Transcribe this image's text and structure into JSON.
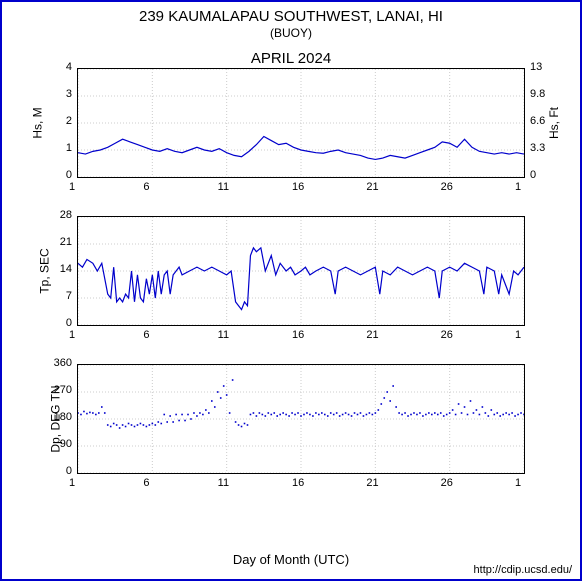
{
  "header": {
    "title": "239 KAUMALAPAU SOUTHWEST, LANAI, HI",
    "subtitle": "(BUOY)",
    "month": "APRIL 2024"
  },
  "xaxis": {
    "label": "Day of Month (UTC)",
    "min": 1,
    "max": 31,
    "ticks": [
      1,
      6,
      11,
      16,
      21,
      26,
      1
    ],
    "tick_positions": [
      1,
      6,
      11,
      16,
      21,
      26,
      31
    ]
  },
  "charts": [
    {
      "id": "hs",
      "type": "line",
      "ylabel": "Hs, M",
      "ylabel_right": "Hs, Ft",
      "ylim": [
        0,
        4
      ],
      "yticks": [
        0,
        1,
        2,
        3,
        4
      ],
      "yticks_right": [
        0,
        3.3,
        6.6,
        9.8,
        13
      ],
      "line_color": "#0000cc",
      "line_width": 1.2,
      "grid_color": "#cccccc",
      "data": [
        [
          1,
          0.9
        ],
        [
          1.5,
          0.85
        ],
        [
          2,
          0.95
        ],
        [
          2.5,
          1.0
        ],
        [
          3,
          1.1
        ],
        [
          3.5,
          1.25
        ],
        [
          4,
          1.4
        ],
        [
          4.5,
          1.3
        ],
        [
          5,
          1.2
        ],
        [
          5.5,
          1.1
        ],
        [
          6,
          1.0
        ],
        [
          6.5,
          0.95
        ],
        [
          7,
          1.05
        ],
        [
          7.5,
          0.95
        ],
        [
          8,
          0.9
        ],
        [
          8.5,
          1.0
        ],
        [
          9,
          1.1
        ],
        [
          9.5,
          1.0
        ],
        [
          10,
          0.95
        ],
        [
          10.5,
          1.05
        ],
        [
          11,
          0.9
        ],
        [
          11.5,
          0.8
        ],
        [
          12,
          0.75
        ],
        [
          12.5,
          0.95
        ],
        [
          13,
          1.2
        ],
        [
          13.5,
          1.5
        ],
        [
          14,
          1.35
        ],
        [
          14.5,
          1.2
        ],
        [
          15,
          1.25
        ],
        [
          15.5,
          1.1
        ],
        [
          16,
          1.0
        ],
        [
          16.5,
          0.95
        ],
        [
          17,
          0.9
        ],
        [
          17.5,
          0.88
        ],
        [
          18,
          0.95
        ],
        [
          18.5,
          1.0
        ],
        [
          19,
          0.9
        ],
        [
          19.5,
          0.85
        ],
        [
          20,
          0.8
        ],
        [
          20.5,
          0.7
        ],
        [
          21,
          0.65
        ],
        [
          21.5,
          0.7
        ],
        [
          22,
          0.8
        ],
        [
          22.5,
          0.75
        ],
        [
          23,
          0.7
        ],
        [
          23.5,
          0.8
        ],
        [
          24,
          0.9
        ],
        [
          24.5,
          1.0
        ],
        [
          25,
          1.1
        ],
        [
          25.5,
          1.3
        ],
        [
          26,
          1.25
        ],
        [
          26.5,
          1.1
        ],
        [
          27,
          1.4
        ],
        [
          27.5,
          1.1
        ],
        [
          28,
          0.95
        ],
        [
          28.5,
          0.9
        ],
        [
          29,
          0.85
        ],
        [
          29.5,
          0.9
        ],
        [
          30,
          0.85
        ],
        [
          30.5,
          0.9
        ],
        [
          31,
          0.85
        ]
      ]
    },
    {
      "id": "tp",
      "type": "line",
      "ylabel": "Tp, SEC",
      "ylim": [
        0,
        28
      ],
      "yticks": [
        0,
        7,
        14,
        21,
        28
      ],
      "line_color": "#0000cc",
      "line_width": 1.2,
      "grid_color": "#cccccc",
      "data": [
        [
          1,
          16
        ],
        [
          1.3,
          15
        ],
        [
          1.6,
          17
        ],
        [
          2,
          16
        ],
        [
          2.3,
          14
        ],
        [
          2.6,
          16
        ],
        [
          3,
          8
        ],
        [
          3.2,
          7
        ],
        [
          3.4,
          15
        ],
        [
          3.6,
          6
        ],
        [
          3.8,
          7
        ],
        [
          4,
          6
        ],
        [
          4.2,
          8
        ],
        [
          4.4,
          7
        ],
        [
          4.6,
          14
        ],
        [
          4.8,
          6
        ],
        [
          5,
          13
        ],
        [
          5.2,
          7
        ],
        [
          5.4,
          6
        ],
        [
          5.6,
          12
        ],
        [
          5.8,
          8
        ],
        [
          6,
          13
        ],
        [
          6.2,
          7
        ],
        [
          6.4,
          14
        ],
        [
          6.6,
          8
        ],
        [
          6.8,
          13
        ],
        [
          7,
          14
        ],
        [
          7.2,
          8
        ],
        [
          7.4,
          13
        ],
        [
          7.6,
          14
        ],
        [
          7.8,
          15
        ],
        [
          8,
          13
        ],
        [
          8.5,
          14
        ],
        [
          9,
          15
        ],
        [
          9.5,
          14
        ],
        [
          10,
          15
        ],
        [
          10.5,
          14
        ],
        [
          11,
          13
        ],
        [
          11.3,
          14
        ],
        [
          11.6,
          6
        ],
        [
          11.8,
          5
        ],
        [
          12,
          4
        ],
        [
          12.2,
          6
        ],
        [
          12.4,
          5
        ],
        [
          12.6,
          18
        ],
        [
          12.8,
          20
        ],
        [
          13,
          19
        ],
        [
          13.3,
          20
        ],
        [
          13.6,
          14
        ],
        [
          14,
          18
        ],
        [
          14.3,
          13
        ],
        [
          14.6,
          16
        ],
        [
          15,
          14
        ],
        [
          15.3,
          15
        ],
        [
          15.6,
          13
        ],
        [
          16,
          14
        ],
        [
          16.3,
          15
        ],
        [
          16.6,
          13
        ],
        [
          17,
          14
        ],
        [
          17.5,
          15
        ],
        [
          18,
          14
        ],
        [
          18.3,
          8
        ],
        [
          18.5,
          14
        ],
        [
          19,
          15
        ],
        [
          19.5,
          14
        ],
        [
          20,
          13
        ],
        [
          20.5,
          14
        ],
        [
          21,
          15
        ],
        [
          21.3,
          8
        ],
        [
          21.5,
          14
        ],
        [
          22,
          13
        ],
        [
          22.5,
          15
        ],
        [
          23,
          14
        ],
        [
          23.5,
          13
        ],
        [
          24,
          14
        ],
        [
          24.5,
          15
        ],
        [
          25,
          14
        ],
        [
          25.3,
          7
        ],
        [
          25.5,
          14
        ],
        [
          26,
          15
        ],
        [
          26.5,
          14
        ],
        [
          27,
          16
        ],
        [
          27.5,
          15
        ],
        [
          28,
          14
        ],
        [
          28.3,
          8
        ],
        [
          28.5,
          15
        ],
        [
          29,
          14
        ],
        [
          29.3,
          8
        ],
        [
          29.5,
          13
        ],
        [
          30,
          8
        ],
        [
          30.3,
          14
        ],
        [
          30.6,
          13
        ],
        [
          31,
          15
        ]
      ]
    },
    {
      "id": "dp",
      "type": "scatter",
      "ylabel": "Dp, DEG TN",
      "ylim": [
        0,
        360
      ],
      "yticks": [
        0,
        90,
        180,
        270,
        360
      ],
      "marker_color": "#0000cc",
      "marker_size": 1.6,
      "grid_color": "#cccccc",
      "data": [
        [
          1,
          200
        ],
        [
          1.2,
          195
        ],
        [
          1.4,
          205
        ],
        [
          1.6,
          198
        ],
        [
          1.8,
          202
        ],
        [
          2,
          200
        ],
        [
          2.2,
          195
        ],
        [
          2.4,
          200
        ],
        [
          2.6,
          220
        ],
        [
          2.8,
          200
        ],
        [
          3,
          160
        ],
        [
          3.2,
          155
        ],
        [
          3.4,
          165
        ],
        [
          3.6,
          160
        ],
        [
          3.8,
          150
        ],
        [
          4,
          160
        ],
        [
          4.2,
          155
        ],
        [
          4.4,
          165
        ],
        [
          4.6,
          160
        ],
        [
          4.8,
          155
        ],
        [
          5,
          160
        ],
        [
          5.2,
          165
        ],
        [
          5.4,
          160
        ],
        [
          5.6,
          155
        ],
        [
          5.8,
          160
        ],
        [
          6,
          165
        ],
        [
          6.2,
          160
        ],
        [
          6.4,
          170
        ],
        [
          6.6,
          165
        ],
        [
          6.8,
          195
        ],
        [
          7,
          170
        ],
        [
          7.2,
          190
        ],
        [
          7.4,
          170
        ],
        [
          7.6,
          195
        ],
        [
          7.8,
          175
        ],
        [
          8,
          195
        ],
        [
          8.2,
          175
        ],
        [
          8.4,
          195
        ],
        [
          8.6,
          180
        ],
        [
          8.8,
          200
        ],
        [
          9,
          190
        ],
        [
          9.2,
          200
        ],
        [
          9.4,
          195
        ],
        [
          9.6,
          210
        ],
        [
          9.8,
          200
        ],
        [
          10,
          240
        ],
        [
          10.2,
          220
        ],
        [
          10.4,
          270
        ],
        [
          10.6,
          250
        ],
        [
          10.8,
          290
        ],
        [
          11,
          260
        ],
        [
          11.2,
          200
        ],
        [
          11.4,
          310
        ],
        [
          11.6,
          170
        ],
        [
          11.8,
          160
        ],
        [
          12,
          155
        ],
        [
          12.2,
          165
        ],
        [
          12.4,
          160
        ],
        [
          12.6,
          195
        ],
        [
          12.8,
          200
        ],
        [
          13,
          190
        ],
        [
          13.2,
          200
        ],
        [
          13.4,
          195
        ],
        [
          13.6,
          190
        ],
        [
          13.8,
          200
        ],
        [
          14,
          195
        ],
        [
          14.2,
          200
        ],
        [
          14.4,
          190
        ],
        [
          14.6,
          195
        ],
        [
          14.8,
          200
        ],
        [
          15,
          195
        ],
        [
          15.2,
          190
        ],
        [
          15.4,
          200
        ],
        [
          15.6,
          195
        ],
        [
          15.8,
          200
        ],
        [
          16,
          190
        ],
        [
          16.2,
          195
        ],
        [
          16.4,
          200
        ],
        [
          16.6,
          195
        ],
        [
          16.8,
          190
        ],
        [
          17,
          200
        ],
        [
          17.2,
          195
        ],
        [
          17.4,
          200
        ],
        [
          17.6,
          195
        ],
        [
          17.8,
          190
        ],
        [
          18,
          200
        ],
        [
          18.2,
          195
        ],
        [
          18.4,
          200
        ],
        [
          18.6,
          190
        ],
        [
          18.8,
          195
        ],
        [
          19,
          200
        ],
        [
          19.2,
          195
        ],
        [
          19.4,
          190
        ],
        [
          19.6,
          200
        ],
        [
          19.8,
          195
        ],
        [
          20,
          200
        ],
        [
          20.2,
          190
        ],
        [
          20.4,
          195
        ],
        [
          20.6,
          200
        ],
        [
          20.8,
          195
        ],
        [
          21,
          200
        ],
        [
          21.2,
          210
        ],
        [
          21.4,
          230
        ],
        [
          21.6,
          250
        ],
        [
          21.8,
          270
        ],
        [
          22,
          240
        ],
        [
          22.2,
          290
        ],
        [
          22.4,
          220
        ],
        [
          22.6,
          200
        ],
        [
          22.8,
          195
        ],
        [
          23,
          200
        ],
        [
          23.2,
          190
        ],
        [
          23.4,
          195
        ],
        [
          23.6,
          200
        ],
        [
          23.8,
          195
        ],
        [
          24,
          200
        ],
        [
          24.2,
          190
        ],
        [
          24.4,
          195
        ],
        [
          24.6,
          200
        ],
        [
          24.8,
          195
        ],
        [
          25,
          200
        ],
        [
          25.2,
          195
        ],
        [
          25.4,
          200
        ],
        [
          25.6,
          190
        ],
        [
          25.8,
          195
        ],
        [
          26,
          200
        ],
        [
          26.2,
          210
        ],
        [
          26.4,
          195
        ],
        [
          26.6,
          230
        ],
        [
          26.8,
          200
        ],
        [
          27,
          220
        ],
        [
          27.2,
          195
        ],
        [
          27.4,
          240
        ],
        [
          27.6,
          200
        ],
        [
          27.8,
          210
        ],
        [
          28,
          195
        ],
        [
          28.2,
          220
        ],
        [
          28.4,
          200
        ],
        [
          28.6,
          190
        ],
        [
          28.8,
          210
        ],
        [
          29,
          195
        ],
        [
          29.2,
          200
        ],
        [
          29.4,
          190
        ],
        [
          29.6,
          195
        ],
        [
          29.8,
          200
        ],
        [
          30,
          195
        ],
        [
          30.2,
          200
        ],
        [
          30.4,
          190
        ],
        [
          30.6,
          195
        ],
        [
          30.8,
          200
        ],
        [
          31,
          195
        ]
      ]
    }
  ],
  "credit": "http://cdip.ucsd.edu/"
}
